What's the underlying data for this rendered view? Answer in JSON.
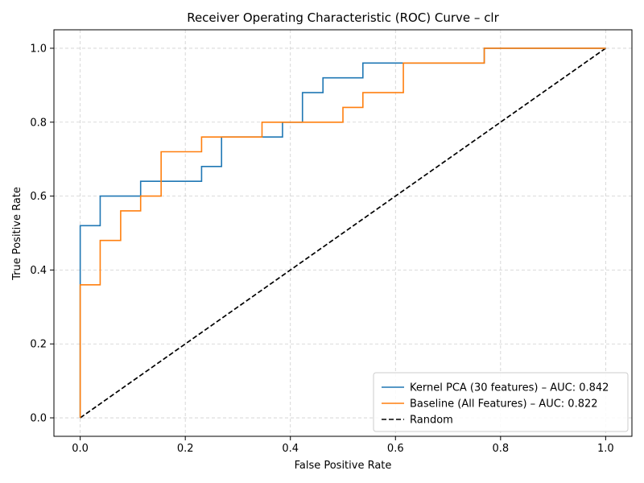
{
  "chart_data": {
    "type": "line",
    "title": "Receiver Operating Characteristic (ROC) Curve – clr",
    "xlabel": "False Positive Rate",
    "ylabel": "True Positive Rate",
    "xlim": [
      -0.05,
      1.05
    ],
    "ylim": [
      -0.05,
      1.05
    ],
    "xticks": [
      "0.0",
      "0.2",
      "0.4",
      "0.6",
      "0.8",
      "1.0"
    ],
    "yticks": [
      "0.0",
      "0.2",
      "0.4",
      "0.6",
      "0.8",
      "1.0"
    ],
    "grid": true,
    "legend_position": "lower-right",
    "series": [
      {
        "name": "Kernel PCA (30 features) – AUC: 0.842",
        "color": "#1f77b4",
        "style": "solid",
        "x": [
          0.0,
          0.0,
          0.0,
          0.038,
          0.038,
          0.115,
          0.115,
          0.231,
          0.231,
          0.269,
          0.269,
          0.385,
          0.385,
          0.423,
          0.423,
          0.462,
          0.462,
          0.538,
          0.538,
          0.615,
          0.615,
          0.769,
          0.769,
          1.0
        ],
        "y": [
          0.0,
          0.36,
          0.52,
          0.52,
          0.6,
          0.6,
          0.64,
          0.64,
          0.68,
          0.68,
          0.76,
          0.76,
          0.8,
          0.8,
          0.88,
          0.88,
          0.92,
          0.92,
          0.96,
          0.96,
          0.96,
          0.96,
          1.0,
          1.0
        ]
      },
      {
        "name": "Baseline (All Features) – AUC: 0.822",
        "color": "#ff7f0e",
        "style": "solid",
        "x": [
          0.0,
          0.0,
          0.038,
          0.038,
          0.077,
          0.077,
          0.115,
          0.115,
          0.154,
          0.154,
          0.231,
          0.231,
          0.346,
          0.346,
          0.5,
          0.5,
          0.538,
          0.538,
          0.615,
          0.615,
          0.769,
          0.769,
          1.0
        ],
        "y": [
          0.0,
          0.36,
          0.36,
          0.48,
          0.48,
          0.56,
          0.56,
          0.6,
          0.6,
          0.72,
          0.72,
          0.76,
          0.76,
          0.8,
          0.8,
          0.84,
          0.84,
          0.88,
          0.88,
          0.96,
          0.96,
          1.0,
          1.0
        ]
      },
      {
        "name": "Random",
        "color": "#000000",
        "style": "dashed",
        "x": [
          0.0,
          1.0
        ],
        "y": [
          0.0,
          1.0
        ]
      }
    ]
  }
}
